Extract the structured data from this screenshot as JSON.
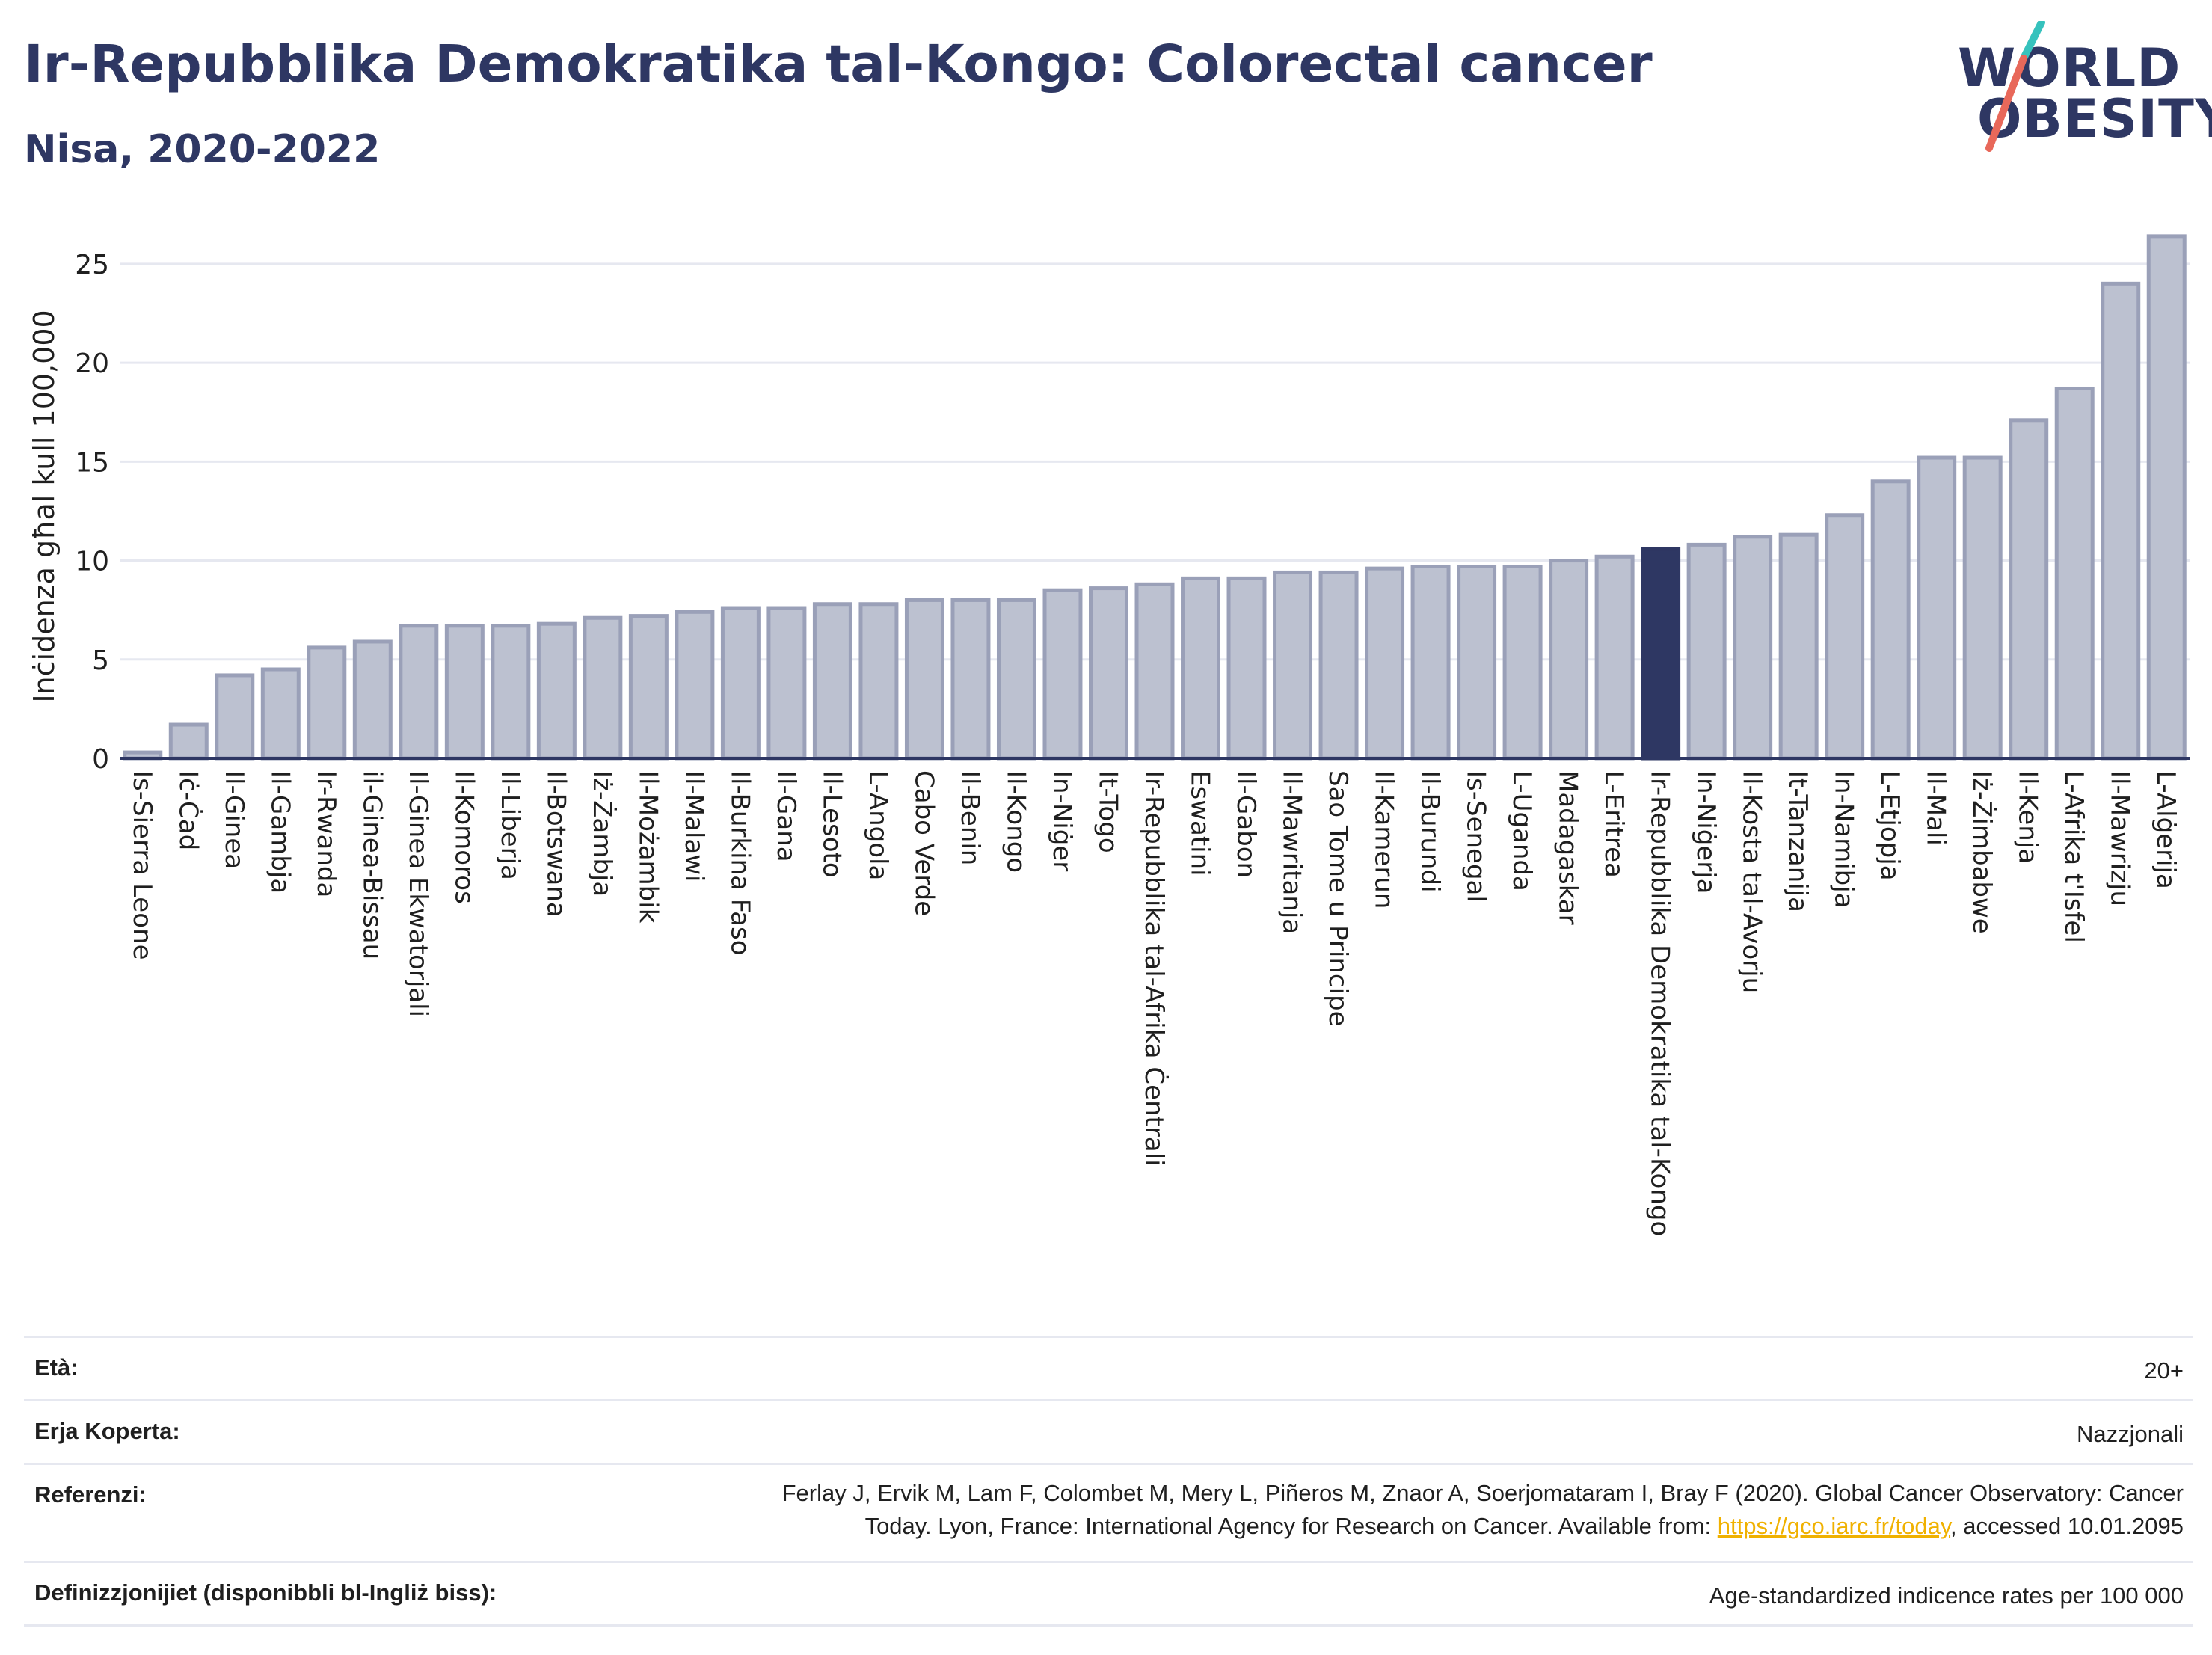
{
  "header": {
    "title": "Ir-Repubblika Demokratika tal-Kongo: Colorectal cancer",
    "subtitle": "Nisa, 2020-2022"
  },
  "logo": {
    "line1": "WORLD",
    "line2": "OBESITY",
    "colors": {
      "slash_top": "#36c2bd",
      "slash_bottom": "#e8685a",
      "text": "#2e3763"
    }
  },
  "chart_data": {
    "type": "bar",
    "ylabel": "Inċidenza għal kull 100,000",
    "xlabel": "",
    "ylim": [
      0,
      27
    ],
    "yticks": [
      0,
      5,
      10,
      15,
      20,
      25
    ],
    "grid": true,
    "categories": [
      "Is-Sierra Leone",
      "Iċ-Ċad",
      "Il-Ginea",
      "Il-Gambja",
      "Ir-Rwanda",
      "il-Ginea-Bissau",
      "Il-Ginea Ekwatorjali",
      "Il-Komoros",
      "Il-Liberja",
      "Il-Botswana",
      "Iż-Żambja",
      "Il-Możambik",
      "Il-Malawi",
      "Il-Burkina Faso",
      "Il-Gana",
      "Il-Lesoto",
      "L-Angola",
      "Cabo Verde",
      "Il-Benin",
      "Il-Kongo",
      "In-Niġer",
      "It-Togo",
      "Ir-Repubblika tal-Afrika Ċentrali",
      "Eswatini",
      "Il-Gabon",
      "Il-Mawritanja",
      "Sao Tome u Principe",
      "Il-Kamerun",
      "Il-Burundi",
      "Is-Senegal",
      "L-Uganda",
      "Madagaskar",
      "L-Eritrea",
      "Ir-Repubblika Demokratika tal-Kongo",
      "In-Niġerja",
      "Il-Kosta tal-Avorju",
      "It-Tanzanija",
      "In-Namibja",
      "L-Etjopja",
      "Il-Mali",
      "Iż-Żimbabwe",
      "Il-Kenja",
      "L-Afrika t'Isfel",
      "Il-Mawrizju",
      "L-Alġerija"
    ],
    "values": [
      0.3,
      1.7,
      4.2,
      4.5,
      5.6,
      5.9,
      6.7,
      6.7,
      6.7,
      6.8,
      7.1,
      7.2,
      7.4,
      7.6,
      7.6,
      7.8,
      7.8,
      8.0,
      8.0,
      8.0,
      8.5,
      8.6,
      8.8,
      9.1,
      9.1,
      9.4,
      9.4,
      9.6,
      9.7,
      9.7,
      9.7,
      10.0,
      10.2,
      10.6,
      10.8,
      11.2,
      11.3,
      12.3,
      14.0,
      15.2,
      15.2,
      17.1,
      18.7,
      24.0,
      26.4
    ],
    "highlight": "Ir-Repubblika Demokratika tal-Kongo",
    "colors": {
      "bar": "#bcc1d0",
      "bar_edge": "#9aa0b8",
      "highlight": "#2e3763",
      "grid": "#e6e8f0",
      "axis": "#2e3763"
    }
  },
  "info": {
    "age_label": "Età:",
    "age_value": "20+",
    "area_label": "Erja Koperta:",
    "area_value": "Nazzjonali",
    "ref_label": "Referenzi:",
    "ref_line1": "Ferlay J, Ervik M, Lam F, Colombet M, Mery L, Piñeros M, Znaor A, Soerjomataram I, Bray F (2020). Global Cancer Observatory: Cancer",
    "ref_line2_pre": "Today. Lyon, France: International Agency for Research on Cancer. Available from: ",
    "ref_link": "https://gco.iarc.fr/today",
    "ref_line2_post": ", accessed 10.01.2095",
    "def_label": "Definizzjonijiet (disponibbli bl-Ingliż biss):",
    "def_value": "Age-standardized indicence rates per 100 000"
  }
}
